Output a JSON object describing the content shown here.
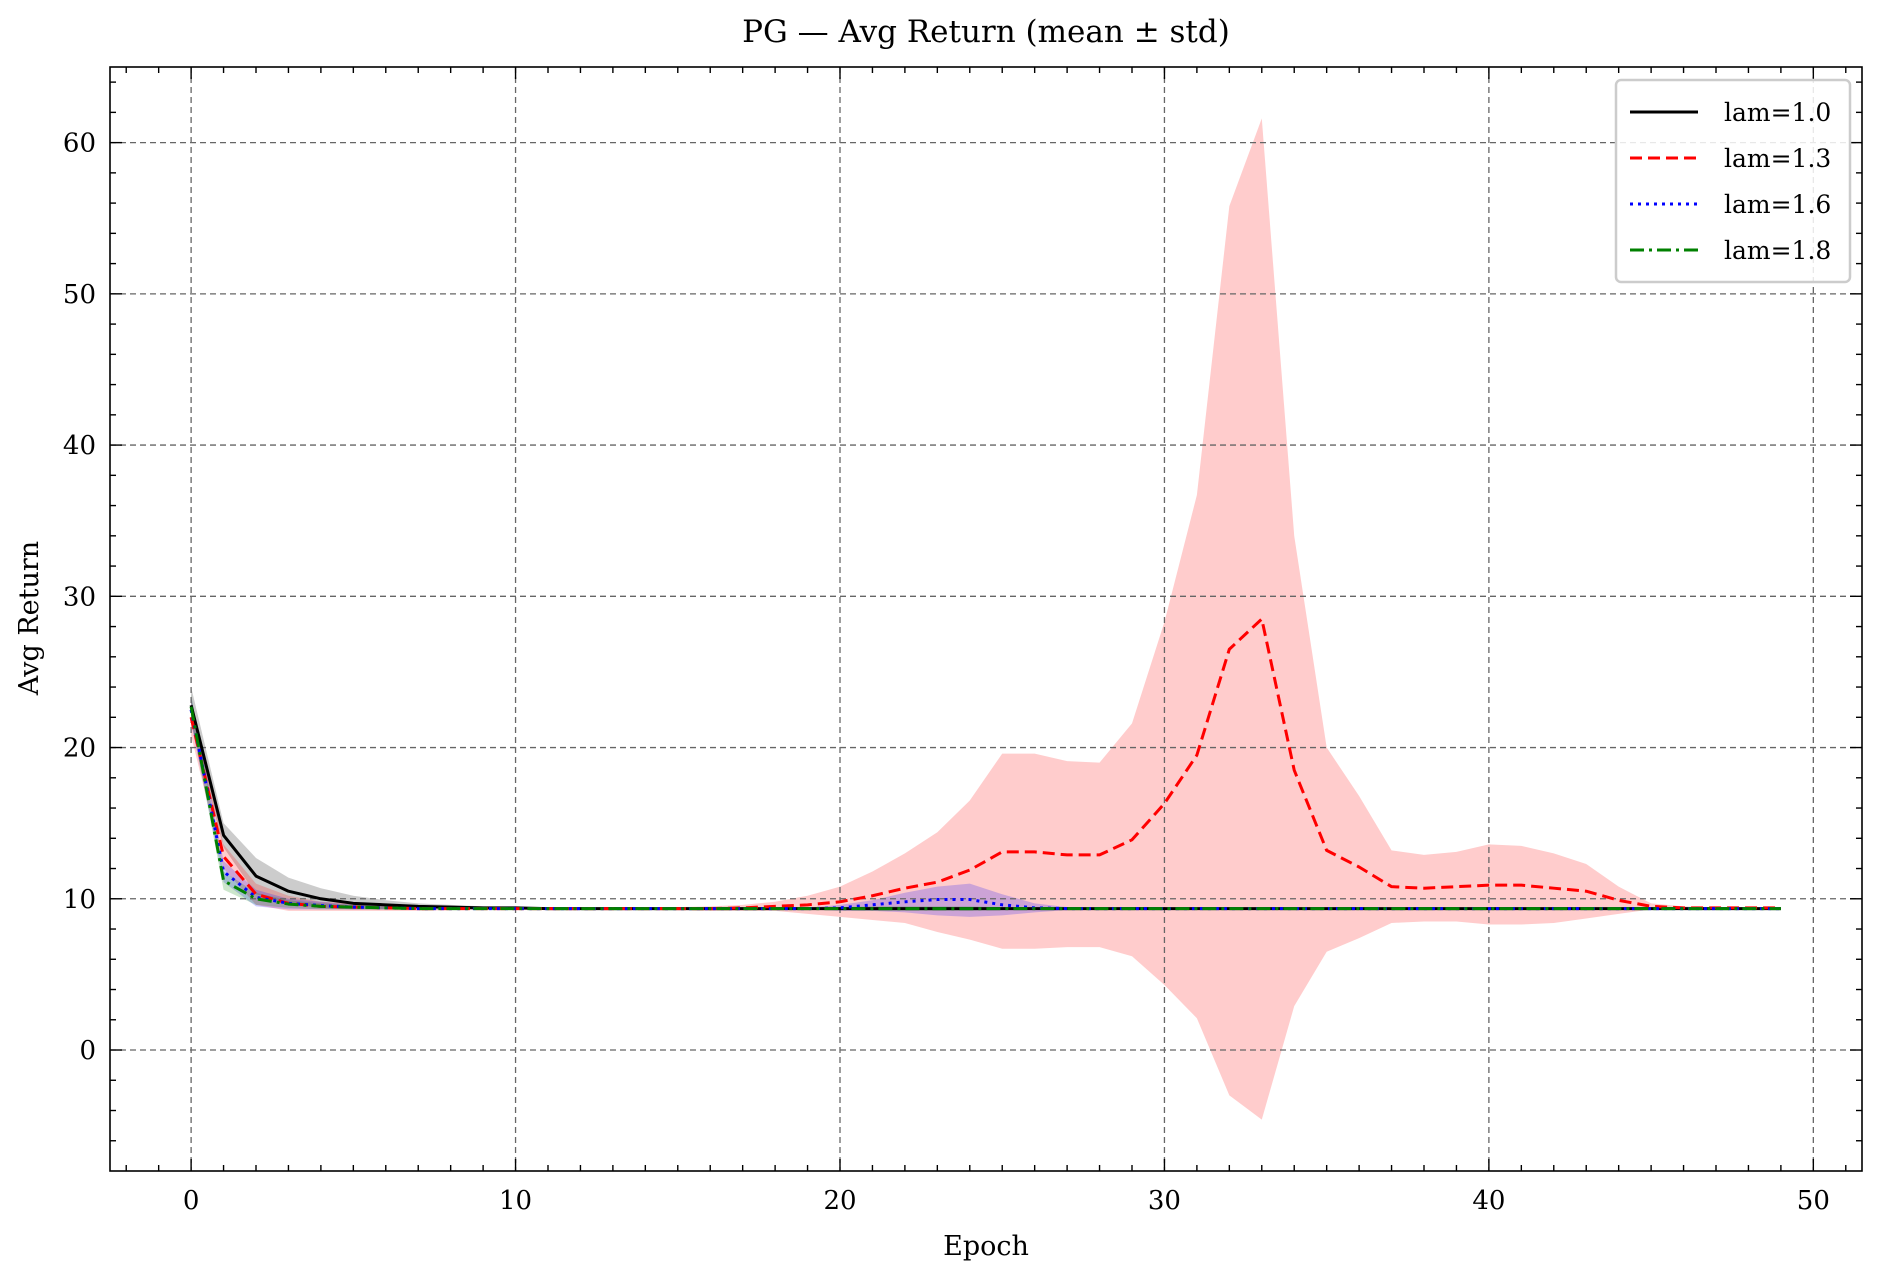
{
  "chart_data": {
    "type": "line",
    "title": "PG — Avg Return (mean ± std)",
    "xlabel": "Epoch",
    "ylabel": "Avg Return",
    "xlim": [
      -2.5,
      51.5
    ],
    "ylim": [
      -8,
      65
    ],
    "xticks": [
      0,
      10,
      20,
      30,
      40,
      50
    ],
    "yticks": [
      0,
      10,
      20,
      30,
      40,
      50,
      60
    ],
    "grid": true,
    "legend_position": "top-right",
    "x": [
      0,
      1,
      2,
      3,
      4,
      5,
      6,
      7,
      8,
      9,
      10,
      11,
      12,
      13,
      14,
      15,
      16,
      17,
      18,
      19,
      20,
      21,
      22,
      23,
      24,
      25,
      26,
      27,
      28,
      29,
      30,
      31,
      32,
      33,
      34,
      35,
      36,
      37,
      38,
      39,
      40,
      41,
      42,
      43,
      44,
      45,
      46,
      47,
      48,
      49
    ],
    "series": [
      {
        "name": "lam=1.0",
        "color": "#000000",
        "dash": "solid",
        "mean": [
          22.8,
          14.2,
          11.5,
          10.5,
          10.0,
          9.7,
          9.6,
          9.5,
          9.45,
          9.4,
          9.4,
          9.35,
          9.35,
          9.35,
          9.35,
          9.35,
          9.35,
          9.35,
          9.35,
          9.35,
          9.35,
          9.35,
          9.35,
          9.35,
          9.35,
          9.35,
          9.35,
          9.35,
          9.35,
          9.35,
          9.35,
          9.35,
          9.35,
          9.35,
          9.35,
          9.35,
          9.35,
          9.35,
          9.35,
          9.35,
          9.35,
          9.35,
          9.35,
          9.35,
          9.35,
          9.35,
          9.35,
          9.35,
          9.35,
          9.35
        ],
        "upper": [
          24.0,
          15.0,
          12.7,
          11.4,
          10.7,
          10.2,
          9.9,
          9.7,
          9.6,
          9.5,
          9.45,
          9.4,
          9.4,
          9.4,
          9.4,
          9.4,
          9.4,
          9.4,
          9.4,
          9.4,
          9.4,
          9.4,
          9.4,
          9.4,
          9.4,
          9.4,
          9.4,
          9.4,
          9.4,
          9.4,
          9.4,
          9.4,
          9.4,
          9.4,
          9.4,
          9.4,
          9.4,
          9.4,
          9.4,
          9.4,
          9.4,
          9.4,
          9.4,
          9.4,
          9.4,
          9.4,
          9.4,
          9.4,
          9.4,
          9.4
        ],
        "lower": [
          21.6,
          13.4,
          10.3,
          9.7,
          9.4,
          9.3,
          9.3,
          9.3,
          9.3,
          9.3,
          9.3,
          9.3,
          9.3,
          9.3,
          9.3,
          9.3,
          9.3,
          9.3,
          9.3,
          9.3,
          9.3,
          9.3,
          9.3,
          9.3,
          9.3,
          9.3,
          9.3,
          9.3,
          9.3,
          9.3,
          9.3,
          9.3,
          9.3,
          9.3,
          9.3,
          9.3,
          9.3,
          9.3,
          9.3,
          9.3,
          9.3,
          9.3,
          9.3,
          9.3,
          9.3,
          9.3,
          9.3,
          9.3,
          9.3,
          9.3
        ]
      },
      {
        "name": "lam=1.3",
        "color": "#ff0000",
        "dash": "dashed",
        "mean": [
          22.0,
          12.8,
          10.3,
          9.7,
          9.5,
          9.45,
          9.4,
          9.35,
          9.35,
          9.35,
          9.35,
          9.35,
          9.35,
          9.35,
          9.35,
          9.35,
          9.35,
          9.4,
          9.5,
          9.6,
          9.8,
          10.2,
          10.7,
          11.1,
          11.9,
          13.1,
          13.1,
          12.9,
          12.9,
          13.9,
          16.3,
          19.5,
          26.5,
          28.5,
          18.5,
          13.2,
          12.1,
          10.8,
          10.7,
          10.8,
          10.9,
          10.9,
          10.7,
          10.5,
          9.9,
          9.5,
          9.4,
          9.4,
          9.4,
          9.4
        ],
        "upper": [
          23.2,
          13.6,
          11.0,
          10.2,
          9.8,
          9.7,
          9.6,
          9.5,
          9.45,
          9.45,
          9.45,
          9.45,
          9.45,
          9.45,
          9.45,
          9.45,
          9.5,
          9.6,
          9.8,
          10.2,
          10.8,
          11.8,
          13.0,
          14.4,
          16.5,
          19.6,
          19.6,
          19.1,
          19.0,
          21.6,
          28.3,
          36.7,
          55.8,
          61.6,
          34.0,
          20.0,
          16.8,
          13.2,
          12.9,
          13.1,
          13.6,
          13.5,
          13.0,
          12.3,
          10.8,
          9.7,
          9.5,
          9.45,
          9.45,
          9.45
        ],
        "lower": [
          20.8,
          12.0,
          9.6,
          9.2,
          9.2,
          9.2,
          9.2,
          9.2,
          9.25,
          9.25,
          9.25,
          9.25,
          9.25,
          9.25,
          9.25,
          9.25,
          9.2,
          9.2,
          9.2,
          9.0,
          8.8,
          8.6,
          8.4,
          7.8,
          7.3,
          6.7,
          6.7,
          6.8,
          6.8,
          6.2,
          4.3,
          2.1,
          -3.0,
          -4.6,
          2.9,
          6.5,
          7.4,
          8.4,
          8.5,
          8.5,
          8.3,
          8.3,
          8.4,
          8.7,
          9.0,
          9.3,
          9.3,
          9.35,
          9.35,
          9.35
        ]
      },
      {
        "name": "lam=1.6",
        "color": "#0000ff",
        "dash": "dotted",
        "mean": [
          22.5,
          11.8,
          10.1,
          9.7,
          9.55,
          9.45,
          9.4,
          9.35,
          9.35,
          9.35,
          9.35,
          9.35,
          9.35,
          9.35,
          9.35,
          9.35,
          9.35,
          9.35,
          9.35,
          9.35,
          9.4,
          9.6,
          9.8,
          9.95,
          9.95,
          9.6,
          9.4,
          9.35,
          9.35,
          9.35,
          9.35,
          9.35,
          9.35,
          9.35,
          9.35,
          9.35,
          9.35,
          9.35,
          9.35,
          9.35,
          9.35,
          9.35,
          9.35,
          9.35,
          9.35,
          9.35,
          9.35,
          9.35,
          9.35,
          9.35
        ],
        "upper": [
          23.4,
          12.5,
          10.6,
          10.0,
          9.8,
          9.6,
          9.5,
          9.45,
          9.4,
          9.4,
          9.4,
          9.4,
          9.4,
          9.4,
          9.4,
          9.4,
          9.4,
          9.4,
          9.4,
          9.4,
          9.6,
          9.9,
          10.4,
          10.8,
          11.0,
          10.3,
          9.7,
          9.45,
          9.4,
          9.4,
          9.4,
          9.4,
          9.4,
          9.4,
          9.4,
          9.4,
          9.4,
          9.4,
          9.4,
          9.4,
          9.4,
          9.4,
          9.4,
          9.4,
          9.4,
          9.4,
          9.4,
          9.4,
          9.4,
          9.4
        ],
        "lower": [
          21.6,
          11.1,
          9.5,
          9.3,
          9.3,
          9.3,
          9.3,
          9.3,
          9.3,
          9.3,
          9.3,
          9.3,
          9.3,
          9.3,
          9.3,
          9.3,
          9.3,
          9.3,
          9.3,
          9.3,
          9.2,
          9.2,
          9.1,
          8.9,
          8.8,
          8.9,
          9.1,
          9.25,
          9.3,
          9.3,
          9.3,
          9.3,
          9.3,
          9.3,
          9.3,
          9.3,
          9.3,
          9.3,
          9.3,
          9.3,
          9.3,
          9.3,
          9.3,
          9.3,
          9.3,
          9.3,
          9.3,
          9.3,
          9.3,
          9.3
        ]
      },
      {
        "name": "lam=1.8",
        "color": "#008000",
        "dash": "dashdot",
        "mean": [
          22.7,
          11.2,
          10.0,
          9.65,
          9.5,
          9.45,
          9.4,
          9.35,
          9.35,
          9.35,
          9.35,
          9.35,
          9.35,
          9.35,
          9.35,
          9.35,
          9.35,
          9.35,
          9.35,
          9.35,
          9.35,
          9.35,
          9.35,
          9.35,
          9.35,
          9.35,
          9.35,
          9.35,
          9.35,
          9.35,
          9.35,
          9.35,
          9.35,
          9.35,
          9.35,
          9.35,
          9.35,
          9.35,
          9.35,
          9.35,
          9.35,
          9.35,
          9.35,
          9.35,
          9.35,
          9.35,
          9.35,
          9.35,
          9.35,
          9.35
        ],
        "upper": [
          23.5,
          11.8,
          10.4,
          9.9,
          9.7,
          9.6,
          9.5,
          9.45,
          9.4,
          9.4,
          9.4,
          9.4,
          9.4,
          9.4,
          9.4,
          9.4,
          9.4,
          9.4,
          9.4,
          9.4,
          9.45,
          9.5,
          9.5,
          9.5,
          9.5,
          9.45,
          9.4,
          9.4,
          9.4,
          9.4,
          9.4,
          9.4,
          9.4,
          9.4,
          9.4,
          9.4,
          9.4,
          9.4,
          9.4,
          9.4,
          9.4,
          9.4,
          9.4,
          9.4,
          9.4,
          9.4,
          9.4,
          9.4,
          9.4,
          9.4
        ],
        "lower": [
          21.9,
          10.6,
          9.6,
          9.4,
          9.3,
          9.3,
          9.3,
          9.3,
          9.3,
          9.3,
          9.3,
          9.3,
          9.3,
          9.3,
          9.3,
          9.3,
          9.3,
          9.3,
          9.3,
          9.3,
          9.25,
          9.2,
          9.2,
          9.2,
          9.2,
          9.25,
          9.3,
          9.3,
          9.3,
          9.3,
          9.3,
          9.3,
          9.3,
          9.3,
          9.3,
          9.3,
          9.3,
          9.3,
          9.3,
          9.3,
          9.3,
          9.3,
          9.3,
          9.3,
          9.3,
          9.3,
          9.3,
          9.3,
          9.3,
          9.3
        ]
      }
    ]
  }
}
